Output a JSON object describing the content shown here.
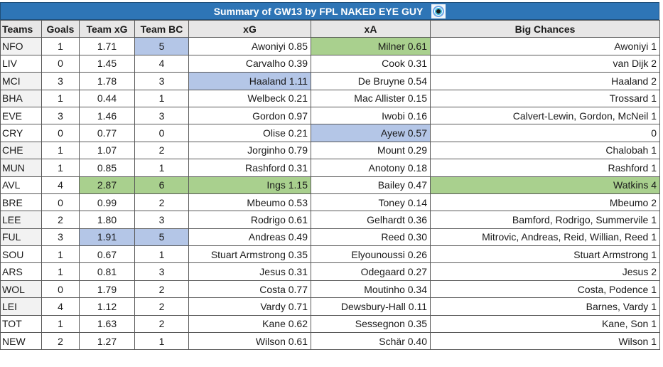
{
  "title": "Summary of GW13 by FPL NAKED EYE GUY",
  "title_icon": "eye-logo-icon",
  "colors": {
    "title_bar": "#2E75B6",
    "header_bg": "#E7E6E6",
    "highlight_green": "#A9D08E",
    "highlight_blue": "#B4C6E7",
    "team_shade": "#F2F2F2"
  },
  "columns": [
    "Teams",
    "Goals",
    "Team xG",
    "Team BC",
    "xG",
    "xA",
    "Big Chances"
  ],
  "rows": [
    {
      "team": "NFO",
      "goals": "1",
      "team_xg": "1.71",
      "team_bc": "5",
      "xg": "Awoniyi 0.85",
      "xa": "Milner 0.61",
      "big_chances": "Awoniyi 1",
      "shade": true,
      "hl": {
        "team_bc": "blue",
        "xa": "green"
      }
    },
    {
      "team": "LIV",
      "goals": "0",
      "team_xg": "1.45",
      "team_bc": "4",
      "xg": "Carvalho 0.39",
      "xa": "Cook 0.31",
      "big_chances": "van Dijk 2",
      "shade": false,
      "hl": {}
    },
    {
      "team": "MCI",
      "goals": "3",
      "team_xg": "1.78",
      "team_bc": "3",
      "xg": "Haaland 1.11",
      "xa": "De Bruyne 0.54",
      "big_chances": "Haaland 2",
      "shade": true,
      "hl": {
        "xg": "blue"
      }
    },
    {
      "team": "BHA",
      "goals": "1",
      "team_xg": "0.44",
      "team_bc": "1",
      "xg": "Welbeck 0.21",
      "xa": "Mac Allister 0.15",
      "big_chances": "Trossard 1",
      "shade": true,
      "hl": {}
    },
    {
      "team": "EVE",
      "goals": "3",
      "team_xg": "1.46",
      "team_bc": "3",
      "xg": "Gordon 0.97",
      "xa": "Iwobi 0.16",
      "big_chances": "Calvert-Lewin, Gordon, McNeil 1",
      "shade": false,
      "hl": {}
    },
    {
      "team": "CRY",
      "goals": "0",
      "team_xg": "0.77",
      "team_bc": "0",
      "xg": "Olise 0.21",
      "xa": "Ayew 0.57",
      "big_chances": "0",
      "shade": false,
      "hl": {
        "xa": "blue"
      }
    },
    {
      "team": "CHE",
      "goals": "1",
      "team_xg": "1.07",
      "team_bc": "2",
      "xg": "Jorginho 0.79",
      "xa": "Mount 0.29",
      "big_chances": "Chalobah 1",
      "shade": true,
      "hl": {}
    },
    {
      "team": "MUN",
      "goals": "1",
      "team_xg": "0.85",
      "team_bc": "1",
      "xg": "Rashford 0.31",
      "xa": "Anotony 0.18",
      "big_chances": "Rashford 1",
      "shade": true,
      "hl": {}
    },
    {
      "team": "AVL",
      "goals": "4",
      "team_xg": "2.87",
      "team_bc": "6",
      "xg": "Ings 1.15",
      "xa": "Bailey 0.47",
      "big_chances": "Watkins 4",
      "shade": false,
      "hl": {
        "team_xg": "green",
        "team_bc": "green",
        "xg": "green",
        "big_chances": "green"
      }
    },
    {
      "team": "BRE",
      "goals": "0",
      "team_xg": "0.99",
      "team_bc": "2",
      "xg": "Mbeumo 0.53",
      "xa": "Toney 0.14",
      "big_chances": "Mbeumo 2",
      "shade": false,
      "hl": {}
    },
    {
      "team": "LEE",
      "goals": "2",
      "team_xg": "1.80",
      "team_bc": "3",
      "xg": "Rodrigo 0.61",
      "xa": "Gelhardt 0.36",
      "big_chances": "Bamford, Rodrigo, Summervile 1",
      "shade": true,
      "hl": {}
    },
    {
      "team": "FUL",
      "goals": "3",
      "team_xg": "1.91",
      "team_bc": "5",
      "xg": "Andreas 0.49",
      "xa": "Reed 0.30",
      "big_chances": "Mitrovic, Andreas, Reid, Willian, Reed 1",
      "shade": true,
      "hl": {
        "team_xg": "blue",
        "team_bc": "blue"
      }
    },
    {
      "team": "SOU",
      "goals": "1",
      "team_xg": "0.67",
      "team_bc": "1",
      "xg": "Stuart Armstrong 0.35",
      "xa": "Elyounoussi 0.26",
      "big_chances": "Stuart Armstrong 1",
      "shade": false,
      "hl": {}
    },
    {
      "team": "ARS",
      "goals": "1",
      "team_xg": "0.81",
      "team_bc": "3",
      "xg": "Jesus 0.31",
      "xa": "Odegaard 0.27",
      "big_chances": "Jesus 2",
      "shade": false,
      "hl": {}
    },
    {
      "team": "WOL",
      "goals": "0",
      "team_xg": "1.79",
      "team_bc": "2",
      "xg": "Costa 0.77",
      "xa": "Moutinho 0.34",
      "big_chances": "Costa, Podence 1",
      "shade": true,
      "hl": {}
    },
    {
      "team": "LEI",
      "goals": "4",
      "team_xg": "1.12",
      "team_bc": "2",
      "xg": "Vardy 0.71",
      "xa": "Dewsbury-Hall 0.11",
      "big_chances": "Barnes, Vardy 1",
      "shade": true,
      "hl": {}
    },
    {
      "team": "TOT",
      "goals": "1",
      "team_xg": "1.63",
      "team_bc": "2",
      "xg": "Kane 0.62",
      "xa": "Sessegnon 0.35",
      "big_chances": "Kane, Son 1",
      "shade": false,
      "hl": {}
    },
    {
      "team": "NEW",
      "goals": "2",
      "team_xg": "1.27",
      "team_bc": "1",
      "xg": "Wilson 0.61",
      "xa": "Schär 0.40",
      "big_chances": "Wilson 1",
      "shade": false,
      "hl": {}
    }
  ]
}
